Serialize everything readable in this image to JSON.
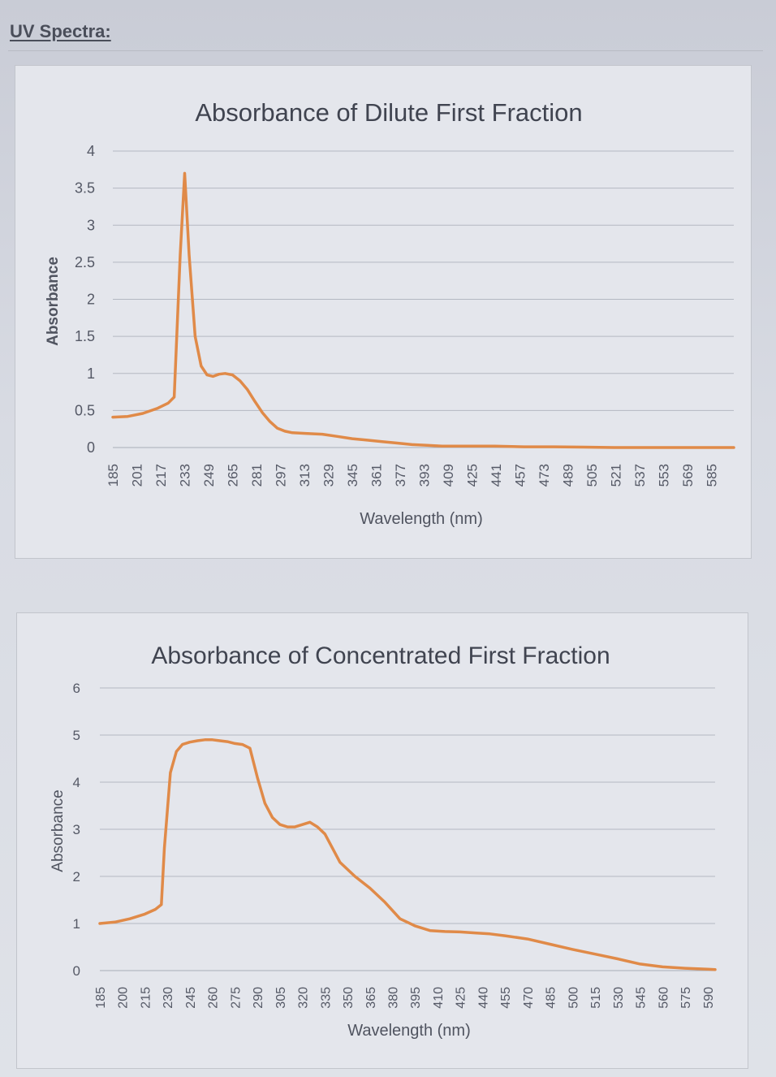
{
  "page": {
    "heading": "UV Spectra:"
  },
  "charts": [
    {
      "id": "dilute",
      "title": "Absorbance of Dilute First Fraction",
      "xlabel": "Wavelength (nm)",
      "ylabel": "Absorbance",
      "yticks": [
        "0",
        "0.5",
        "1",
        "1.5",
        "2",
        "2.5",
        "3",
        "3.5",
        "4"
      ],
      "xticks": [
        "185",
        "201",
        "217",
        "233",
        "249",
        "265",
        "281",
        "297",
        "313",
        "329",
        "345",
        "361",
        "377",
        "393",
        "409",
        "425",
        "441",
        "457",
        "473",
        "489",
        "505",
        "521",
        "537",
        "553",
        "569",
        "585"
      ]
    },
    {
      "id": "concentrated",
      "title": "Absorbance of Concentrated First Fraction",
      "xlabel": "Wavelength (nm)",
      "ylabel": "Absorbance",
      "yticks": [
        "0",
        "1",
        "2",
        "3",
        "4",
        "5",
        "6"
      ],
      "xticks": [
        "185",
        "200",
        "215",
        "230",
        "245",
        "260",
        "275",
        "290",
        "305",
        "320",
        "335",
        "350",
        "365",
        "380",
        "395",
        "410",
        "425",
        "440",
        "455",
        "470",
        "485",
        "500",
        "515",
        "530",
        "545",
        "560",
        "575",
        "590"
      ]
    }
  ],
  "chart_data": [
    {
      "type": "line",
      "title": "Absorbance of Dilute First Fraction",
      "xlabel": "Wavelength (nm)",
      "ylabel": "Absorbance",
      "xlim": [
        185,
        600
      ],
      "ylim": [
        0,
        4
      ],
      "grid": true,
      "color": "#e08a48",
      "x": [
        185,
        195,
        205,
        215,
        222,
        226,
        230,
        233,
        236,
        240,
        244,
        248,
        252,
        256,
        260,
        265,
        270,
        275,
        280,
        285,
        290,
        295,
        300,
        305,
        315,
        325,
        335,
        345,
        355,
        365,
        375,
        385,
        395,
        405,
        420,
        440,
        460,
        480,
        500,
        520,
        540,
        560,
        580,
        600
      ],
      "y": [
        0.41,
        0.42,
        0.46,
        0.53,
        0.6,
        0.68,
        2.6,
        3.7,
        2.6,
        1.5,
        1.1,
        0.98,
        0.96,
        0.99,
        1.0,
        0.98,
        0.9,
        0.78,
        0.62,
        0.47,
        0.35,
        0.26,
        0.22,
        0.2,
        0.19,
        0.18,
        0.15,
        0.12,
        0.1,
        0.08,
        0.06,
        0.04,
        0.03,
        0.02,
        0.02,
        0.02,
        0.01,
        0.01,
        0.005,
        0.0,
        0.0,
        0.0,
        0.0,
        0.0
      ]
    },
    {
      "type": "line",
      "title": "Absorbance of Concentrated First Fraction",
      "xlabel": "Wavelength (nm)",
      "ylabel": "Absorbance",
      "xlim": [
        185,
        595
      ],
      "ylim": [
        0,
        6
      ],
      "grid": true,
      "color": "#e08a48",
      "x": [
        185,
        195,
        205,
        215,
        222,
        226,
        228,
        232,
        236,
        240,
        245,
        250,
        255,
        260,
        265,
        270,
        275,
        280,
        285,
        290,
        295,
        300,
        305,
        310,
        315,
        320,
        325,
        330,
        335,
        345,
        355,
        365,
        375,
        385,
        395,
        405,
        415,
        425,
        435,
        445,
        455,
        470,
        485,
        500,
        515,
        530,
        545,
        560,
        575,
        590,
        595
      ],
      "y": [
        1.0,
        1.03,
        1.1,
        1.2,
        1.3,
        1.4,
        2.6,
        4.2,
        4.65,
        4.8,
        4.85,
        4.88,
        4.9,
        4.9,
        4.88,
        4.86,
        4.82,
        4.8,
        4.72,
        4.1,
        3.55,
        3.25,
        3.1,
        3.05,
        3.05,
        3.1,
        3.15,
        3.05,
        2.9,
        2.3,
        2.0,
        1.75,
        1.45,
        1.1,
        0.95,
        0.85,
        0.83,
        0.82,
        0.8,
        0.78,
        0.74,
        0.67,
        0.56,
        0.45,
        0.35,
        0.25,
        0.14,
        0.08,
        0.05,
        0.03,
        0.02
      ]
    }
  ]
}
